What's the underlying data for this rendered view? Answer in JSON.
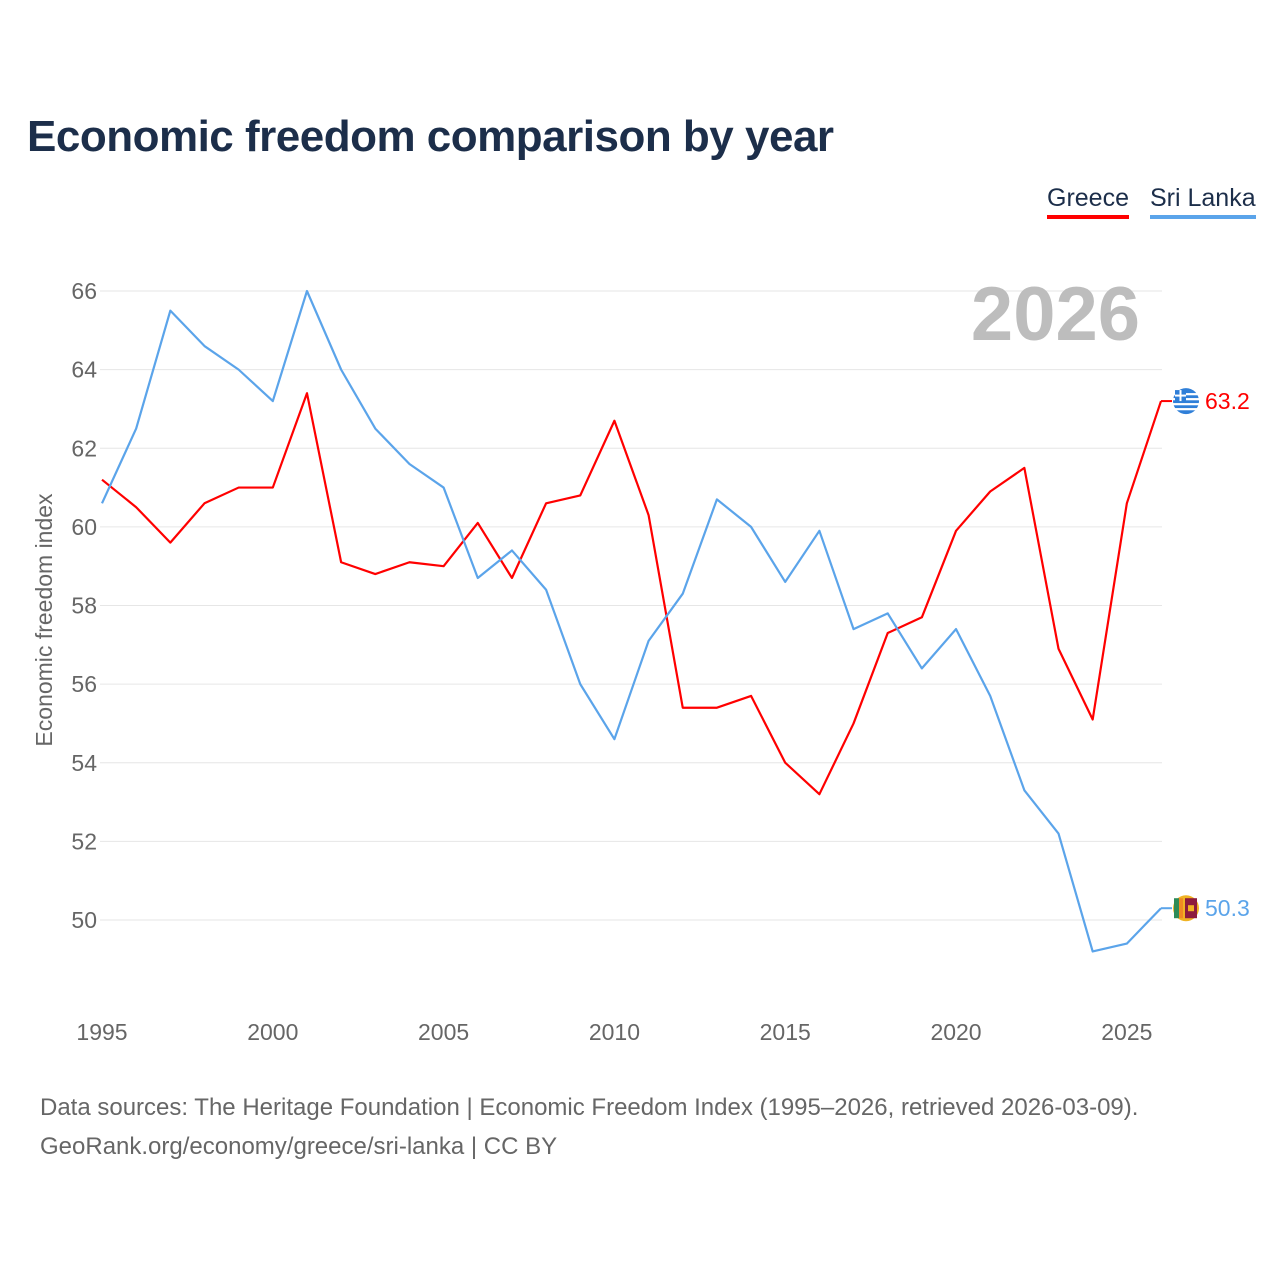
{
  "chart_data": {
    "type": "line",
    "title": "Economic freedom comparison by year",
    "ylabel": "Economic freedom index",
    "xlabel": "",
    "ylim": [
      48,
      66.5
    ],
    "xlim": [
      1995,
      2026
    ],
    "yticks": [
      50,
      52,
      54,
      56,
      58,
      60,
      62,
      64,
      66
    ],
    "xticks": [
      1995,
      2000,
      2005,
      2010,
      2015,
      2020,
      2025
    ],
    "grid": true,
    "legend_position": "top-right",
    "watermark_year": "2026",
    "x": [
      1995,
      1996,
      1997,
      1998,
      1999,
      2000,
      2001,
      2002,
      2003,
      2004,
      2005,
      2006,
      2007,
      2008,
      2009,
      2010,
      2011,
      2012,
      2013,
      2014,
      2015,
      2016,
      2017,
      2018,
      2019,
      2020,
      2021,
      2022,
      2023,
      2024,
      2025,
      2026
    ],
    "series": [
      {
        "name": "Greece",
        "color": "#ff0000",
        "end_label": "63.2",
        "values": [
          61.2,
          60.5,
          59.6,
          60.6,
          61.0,
          61.0,
          63.4,
          59.1,
          58.8,
          59.1,
          59.0,
          60.1,
          58.7,
          60.6,
          60.8,
          62.7,
          60.3,
          55.4,
          55.4,
          55.7,
          54.0,
          53.2,
          55.0,
          57.3,
          57.7,
          59.9,
          60.9,
          61.5,
          56.9,
          55.1,
          60.6,
          63.2
        ]
      },
      {
        "name": "Sri Lanka",
        "color": "#5ba4ea",
        "end_label": "50.3",
        "values": [
          60.6,
          62.5,
          65.5,
          64.6,
          64.0,
          63.2,
          66.0,
          64.0,
          62.5,
          61.6,
          61.0,
          58.7,
          59.4,
          58.4,
          56.0,
          54.6,
          57.1,
          58.3,
          60.7,
          60.0,
          58.6,
          59.9,
          57.4,
          57.8,
          56.4,
          57.4,
          55.7,
          53.3,
          52.2,
          49.2,
          49.4,
          50.3
        ]
      }
    ]
  },
  "footer": {
    "line1": "Data sources: The Heritage Foundation | Economic Freedom Index (1995–2026, retrieved 2026-03-09).",
    "line2": "GeoRank.org/economy/greece/sri-lanka | CC BY"
  }
}
